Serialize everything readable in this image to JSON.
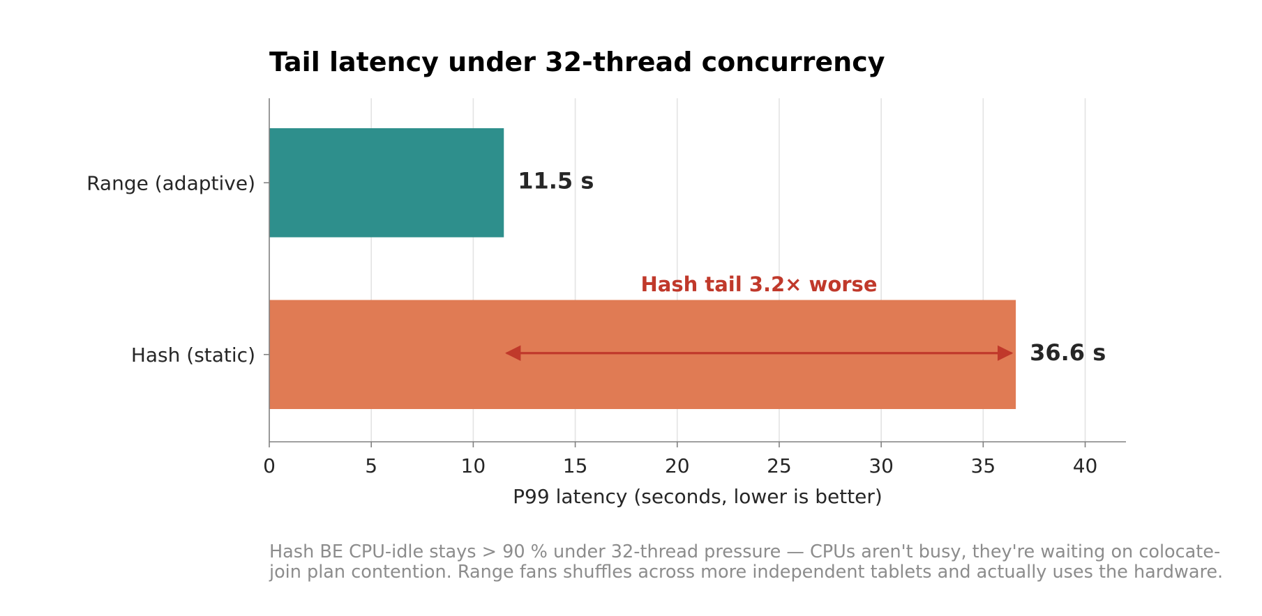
{
  "chart_data": {
    "type": "bar",
    "orientation": "horizontal",
    "title": "Tail latency under 32-thread concurrency",
    "xlabel": "P99 latency (seconds, lower is better)",
    "ylabel": "",
    "xlim": [
      0,
      42
    ],
    "xticks": [
      0,
      5,
      10,
      15,
      20,
      25,
      30,
      35,
      40
    ],
    "grid": "vertical",
    "categories": [
      "Range (adaptive)",
      "Hash (static)"
    ],
    "values": [
      11.5,
      36.6
    ],
    "value_labels": [
      "11.5 s",
      "36.6 s"
    ],
    "colors": [
      "#2e8f8c",
      "#e07b54"
    ],
    "annotation": {
      "text": "Hash tail 3.2× worse",
      "color": "#c0392b",
      "arrow_from": 11.5,
      "arrow_to": 36.6
    }
  },
  "caption": "Hash BE CPU-idle stays > 90 % under 32-thread pressure — CPUs aren't busy, they're waiting on colocate-join plan contention. Range fans shuffles across more independent tablets and actually uses the hardware."
}
